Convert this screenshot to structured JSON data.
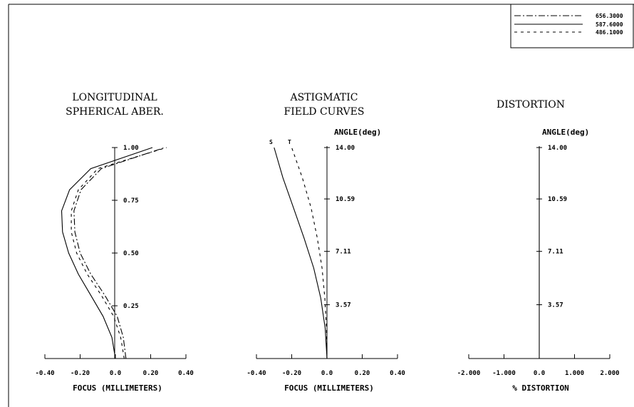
{
  "legend": [
    {
      "label": "656.3000",
      "dash": "dashdot"
    },
    {
      "label": "587.6000",
      "dash": "solid"
    },
    {
      "label": "486.1000",
      "dash": "dashed"
    }
  ],
  "chart_data": [
    {
      "type": "line",
      "title_lines": [
        "LONGITUDINAL",
        "SPHERICAL ABER."
      ],
      "xlabel": "FOCUS (MILLIMETERS)",
      "xlim": [
        -0.4,
        0.4
      ],
      "x_ticks": [
        "-0.40",
        "-0.20",
        "0.0",
        "0.20",
        "0.40"
      ],
      "ylim": [
        0,
        1
      ],
      "y_ticks": [
        {
          "value": 0.25,
          "label": "0.25"
        },
        {
          "value": 0.5,
          "label": "0.50"
        },
        {
          "value": 0.75,
          "label": "0.75"
        },
        {
          "value": 1.0,
          "label": "1.00"
        }
      ],
      "series": [
        {
          "name": "587.6000",
          "dash": "solid",
          "y": [
            0,
            0.1,
            0.2,
            0.3,
            0.4,
            0.5,
            0.6,
            0.7,
            0.8,
            0.9,
            1.0
          ],
          "x": [
            0.0,
            -0.02,
            -0.07,
            -0.14,
            -0.21,
            -0.265,
            -0.3,
            -0.305,
            -0.26,
            -0.14,
            0.21
          ]
        },
        {
          "name": "656.3000",
          "dash": "dashdot",
          "y": [
            0,
            0.1,
            0.2,
            0.3,
            0.4,
            0.5,
            0.6,
            0.7,
            0.8,
            0.9,
            1.0
          ],
          "x": [
            0.06,
            0.045,
            0.01,
            -0.06,
            -0.14,
            -0.2,
            -0.23,
            -0.235,
            -0.195,
            -0.08,
            0.28
          ]
        },
        {
          "name": "486.1000",
          "dash": "dashed",
          "y": [
            0,
            0.1,
            0.2,
            0.3,
            0.4,
            0.5,
            0.6,
            0.7,
            0.8,
            0.9,
            1.0
          ],
          "x": [
            0.05,
            0.03,
            -0.01,
            -0.08,
            -0.16,
            -0.22,
            -0.25,
            -0.25,
            -0.21,
            -0.1,
            0.29
          ]
        }
      ]
    },
    {
      "type": "line",
      "title_lines": [
        "ASTIGMATIC",
        "FIELD CURVES"
      ],
      "angle_label": "ANGLE(deg)",
      "xlabel": "FOCUS (MILLIMETERS)",
      "xlim": [
        -0.4,
        0.4
      ],
      "x_ticks": [
        "-0.40",
        "-0.20",
        "0.0",
        "0.20",
        "0.40"
      ],
      "ylim": [
        0,
        14
      ],
      "y_ticks": [
        {
          "value": 3.57,
          "label": "3.57"
        },
        {
          "value": 7.11,
          "label": "7.11"
        },
        {
          "value": 10.59,
          "label": "10.59"
        },
        {
          "value": 14.0,
          "label": "14.00"
        }
      ],
      "series": [
        {
          "name": "S",
          "dash": "solid",
          "y": [
            0,
            2,
            4,
            6,
            8,
            10,
            12,
            14
          ],
          "x": [
            0.0,
            -0.01,
            -0.035,
            -0.075,
            -0.13,
            -0.19,
            -0.25,
            -0.3
          ]
        },
        {
          "name": "T",
          "dash": "dashed",
          "y": [
            0,
            2,
            4,
            6,
            8,
            10,
            12,
            14
          ],
          "x": [
            0.0,
            -0.003,
            -0.012,
            -0.028,
            -0.055,
            -0.09,
            -0.14,
            -0.2
          ]
        }
      ],
      "curve_labels": [
        {
          "text": "S",
          "x": -0.32
        },
        {
          "text": "T",
          "x": -0.22
        }
      ]
    },
    {
      "type": "line",
      "title_lines": [
        "DISTORTION"
      ],
      "angle_label": "ANGLE(deg)",
      "xlabel": "% DISTORTION",
      "xlim": [
        -2.0,
        2.0
      ],
      "x_ticks": [
        "-2.000",
        "-1.000",
        "0.0",
        "1.000",
        "2.000"
      ],
      "ylim": [
        0,
        14
      ],
      "y_ticks": [
        {
          "value": 3.57,
          "label": "3.57"
        },
        {
          "value": 7.11,
          "label": "7.11"
        },
        {
          "value": 10.59,
          "label": "10.59"
        },
        {
          "value": 14.0,
          "label": "14.00"
        }
      ],
      "series": [
        {
          "name": "587.6000",
          "dash": "solid",
          "y": [
            0,
            14
          ],
          "x": [
            0.0,
            0.0
          ]
        }
      ]
    }
  ]
}
